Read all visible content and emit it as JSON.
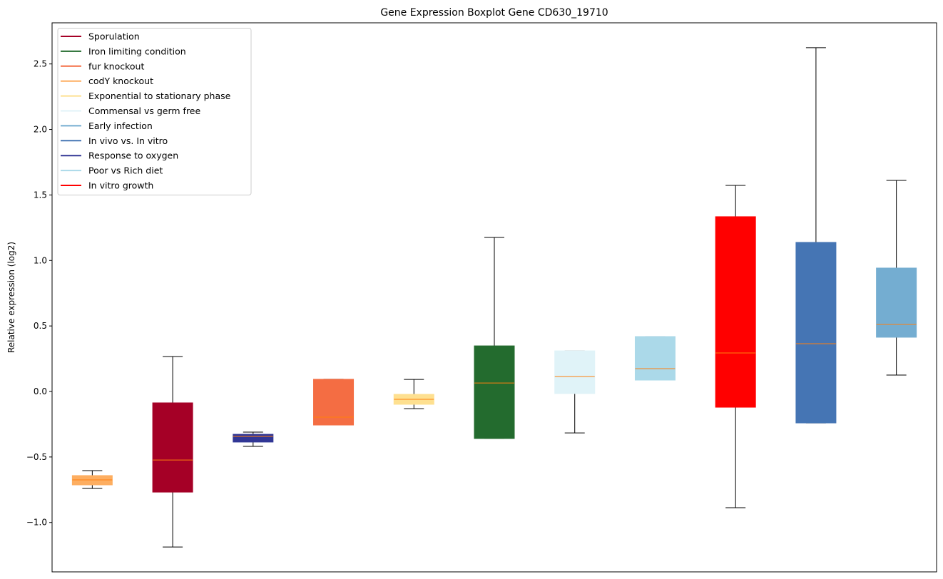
{
  "chart_data": {
    "type": "boxplot",
    "title": "Gene Expression Boxplot Gene CD630_19710",
    "xlabel": "",
    "ylabel": "Relative expression (log2)",
    "ylim": [
      -1.377,
      2.814
    ],
    "xlim": [
      0.5,
      11.5
    ],
    "yticks": [
      -1.0,
      -0.5,
      0.0,
      0.5,
      1.0,
      1.5,
      2.0,
      2.5
    ],
    "ytick_labels": [
      "−1.0",
      "−0.5",
      "0.0",
      "0.5",
      "1.0",
      "1.5",
      "2.0",
      "2.5"
    ],
    "grid": false,
    "legend_position": "top-left",
    "median_color": "#ff7f0e",
    "legend": [
      {
        "label": "Sporulation",
        "color": "#a50026"
      },
      {
        "label": "Iron limiting condition",
        "color": "#236b2e"
      },
      {
        "label": "fur knockout",
        "color": "#f46d43"
      },
      {
        "label": "codY knockout",
        "color": "#fdae61"
      },
      {
        "label": "Exponential to stationary phase",
        "color": "#fee090"
      },
      {
        "label": "Commensal vs germ free",
        "color": "#e0f3f8"
      },
      {
        "label": "Early infection",
        "color": "#74add1"
      },
      {
        "label": "In vivo vs. In vitro",
        "color": "#4575b4"
      },
      {
        "label": "Response to oxygen",
        "color": "#313695"
      },
      {
        "label": "Poor vs Rich diet",
        "color": "#abd9e9"
      },
      {
        "label": "In vitro growth",
        "color": "#ff0000"
      }
    ],
    "series": [
      {
        "name": "codY knockout",
        "color": "#fdae61",
        "whislo": -0.74,
        "q1": -0.713,
        "median": -0.675,
        "q3": -0.642,
        "whishi": -0.604
      },
      {
        "name": "Sporulation",
        "color": "#a50026",
        "whislo": -1.187,
        "q1": -0.768,
        "median": -0.523,
        "q3": -0.087,
        "whishi": 0.267
      },
      {
        "name": "Response to oxygen",
        "color": "#313695",
        "whislo": -0.419,
        "q1": -0.386,
        "median": -0.343,
        "q3": -0.327,
        "whishi": -0.31
      },
      {
        "name": "fur knockout",
        "color": "#f46d43",
        "whislo": -0.256,
        "q1": -0.256,
        "median": -0.196,
        "q3": 0.093,
        "whishi": 0.093
      },
      {
        "name": "Exponential to stationary phase",
        "color": "#fee090",
        "whislo": -0.131,
        "q1": -0.098,
        "median": -0.06,
        "q3": -0.022,
        "whishi": 0.092
      },
      {
        "name": "Iron limiting condition",
        "color": "#236b2e",
        "whislo": -0.359,
        "q1": -0.359,
        "median": 0.065,
        "q3": 0.348,
        "whishi": 1.176
      },
      {
        "name": "Commensal vs germ free",
        "color": "#e0f3f8",
        "whislo": -0.316,
        "q1": -0.016,
        "median": 0.114,
        "q3": 0.31,
        "whishi": 0.31
      },
      {
        "name": "Poor vs Rich diet",
        "color": "#abd9e9",
        "whislo": 0.087,
        "q1": 0.087,
        "median": 0.174,
        "q3": 0.419,
        "whishi": 0.419
      },
      {
        "name": "In vitro growth",
        "color": "#ff0000",
        "whislo": -0.887,
        "q1": -0.12,
        "median": 0.294,
        "q3": 1.334,
        "whishi": 1.573
      },
      {
        "name": "In vivo vs. In vitro",
        "color": "#4575b4",
        "whislo": -0.24,
        "q1": -0.24,
        "median": 0.365,
        "q3": 1.138,
        "whishi": 2.624
      },
      {
        "name": "Early infection",
        "color": "#74add1",
        "whislo": 0.125,
        "q1": 0.414,
        "median": 0.512,
        "q3": 0.942,
        "whishi": 1.611
      }
    ]
  }
}
